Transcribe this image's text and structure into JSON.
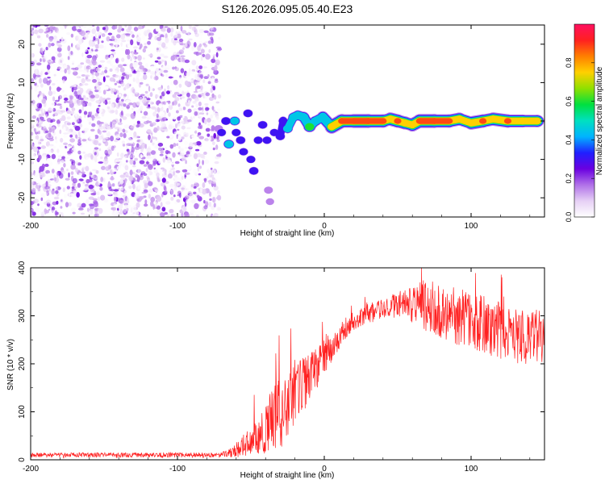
{
  "title": "S126.2026.095.05.40.E23",
  "chart_data": [
    {
      "type": "heatmap",
      "xlabel": "Height of straight line (km)",
      "ylabel": "Frequency (Hz)",
      "xlim": [
        -200,
        150
      ],
      "ylim": [
        -25,
        25
      ],
      "xticks": [
        -200,
        -100,
        0,
        100
      ],
      "yticks": [
        -20,
        -10,
        0,
        10,
        20
      ],
      "colorbar": {
        "label": "Normalized spectral amplitude",
        "range": [
          0.0,
          1.0
        ],
        "ticks": [
          "0.0",
          "0.2",
          "0.4",
          "0.6",
          "0.8"
        ],
        "colormap": [
          "#ffffff",
          "#e6d0f5",
          "#b070e8",
          "#6a00e0",
          "#2020ff",
          "#00b4ff",
          "#00e0c0",
          "#00e040",
          "#90e000",
          "#ffd000",
          "#ff8000",
          "#ff2020",
          "#ff1060"
        ]
      },
      "noise_region": {
        "x_range": [
          -200,
          -73
        ],
        "freq_range": [
          -25,
          25
        ],
        "amplitude_range": [
          0.0,
          0.15
        ]
      },
      "signal_track": [
        {
          "x": -72,
          "f": -2,
          "amp": 0.25
        },
        {
          "x": -70,
          "f": -3,
          "amp": 0.3
        },
        {
          "x": -67,
          "f": 0,
          "amp": 0.35
        },
        {
          "x": -65,
          "f": -6,
          "amp": 0.45
        },
        {
          "x": -61,
          "f": 0,
          "amp": 0.45
        },
        {
          "x": -60,
          "f": -3,
          "amp": 0.3
        },
        {
          "x": -57,
          "f": -5,
          "amp": 0.35
        },
        {
          "x": -55,
          "f": -8,
          "amp": 0.3
        },
        {
          "x": -52,
          "f": 2,
          "amp": 0.35
        },
        {
          "x": -50,
          "f": -10,
          "amp": 0.3
        },
        {
          "x": -48,
          "f": -13,
          "amp": 0.35
        },
        {
          "x": -45,
          "f": -5,
          "amp": 0.3
        },
        {
          "x": -42,
          "f": -1,
          "amp": 0.35
        },
        {
          "x": -39,
          "f": -5,
          "amp": 0.3
        },
        {
          "x": -38,
          "f": -18,
          "amp": 0.25
        },
        {
          "x": -37,
          "f": -21,
          "amp": 0.2
        },
        {
          "x": -34,
          "f": -3,
          "amp": 0.3
        },
        {
          "x": -30,
          "f": -4,
          "amp": 0.35
        },
        {
          "x": -28,
          "f": 0,
          "amp": 0.3
        },
        {
          "x": -25,
          "f": -2,
          "amp": 0.45
        },
        {
          "x": -21,
          "f": 1,
          "amp": 0.45
        },
        {
          "x": -18,
          "f": 1.5,
          "amp": 0.5
        },
        {
          "x": -14,
          "f": 1,
          "amp": 0.55
        },
        {
          "x": -10,
          "f": -1.5,
          "amp": 0.65
        },
        {
          "x": -6,
          "f": 0,
          "amp": 0.55
        },
        {
          "x": -1,
          "f": 1,
          "amp": 0.55
        },
        {
          "x": 5,
          "f": -1.5,
          "amp": 0.75
        },
        {
          "x": 12,
          "f": 0,
          "amp": 0.95
        },
        {
          "x": 20,
          "f": 0,
          "amp": 0.9
        },
        {
          "x": 30,
          "f": 0,
          "amp": 0.95
        },
        {
          "x": 40,
          "f": 0,
          "amp": 0.9
        },
        {
          "x": 45,
          "f": 0.5,
          "amp": 0.8
        },
        {
          "x": 50,
          "f": 0,
          "amp": 0.9
        },
        {
          "x": 55,
          "f": -0.5,
          "amp": 0.85
        },
        {
          "x": 60,
          "f": -1,
          "amp": 0.8
        },
        {
          "x": 65,
          "f": 0,
          "amp": 0.9
        },
        {
          "x": 75,
          "f": 0,
          "amp": 0.95
        },
        {
          "x": 85,
          "f": 0,
          "amp": 0.9
        },
        {
          "x": 92,
          "f": 0.5,
          "amp": 0.85
        },
        {
          "x": 100,
          "f": -0.5,
          "amp": 0.8
        },
        {
          "x": 108,
          "f": 0,
          "amp": 0.9
        },
        {
          "x": 115,
          "f": 0.5,
          "amp": 0.85
        },
        {
          "x": 125,
          "f": 0,
          "amp": 0.9
        },
        {
          "x": 135,
          "f": 0,
          "amp": 0.85
        },
        {
          "x": 145,
          "f": 0,
          "amp": 0.8
        }
      ]
    },
    {
      "type": "line",
      "xlabel": "Height of straight line (km)",
      "ylabel": "SNR (10 * v/v)",
      "xlim": [
        -200,
        150
      ],
      "ylim": [
        0,
        400
      ],
      "xticks": [
        -200,
        -100,
        0,
        100
      ],
      "yticks": [
        0,
        100,
        200,
        300,
        400
      ],
      "color": "#ff2020",
      "series": [
        {
          "name": "SNR",
          "envelope_x": [
            -200,
            -70,
            -60,
            -50,
            -40,
            -30,
            -20,
            -10,
            0,
            10,
            20,
            30,
            40,
            50,
            60,
            70,
            80,
            90,
            100,
            110,
            120,
            130,
            140,
            150
          ],
          "envelope_y": [
            10,
            10,
            20,
            40,
            60,
            100,
            140,
            170,
            210,
            260,
            290,
            305,
            315,
            320,
            320,
            320,
            310,
            300,
            290,
            280,
            270,
            260,
            255,
            250
          ],
          "noise_amplitude": [
            5,
            5,
            15,
            30,
            60,
            80,
            70,
            50,
            40,
            30,
            20,
            20,
            20,
            30,
            40,
            60,
            60,
            60,
            60,
            60,
            60,
            60,
            60,
            60
          ]
        }
      ]
    }
  ]
}
